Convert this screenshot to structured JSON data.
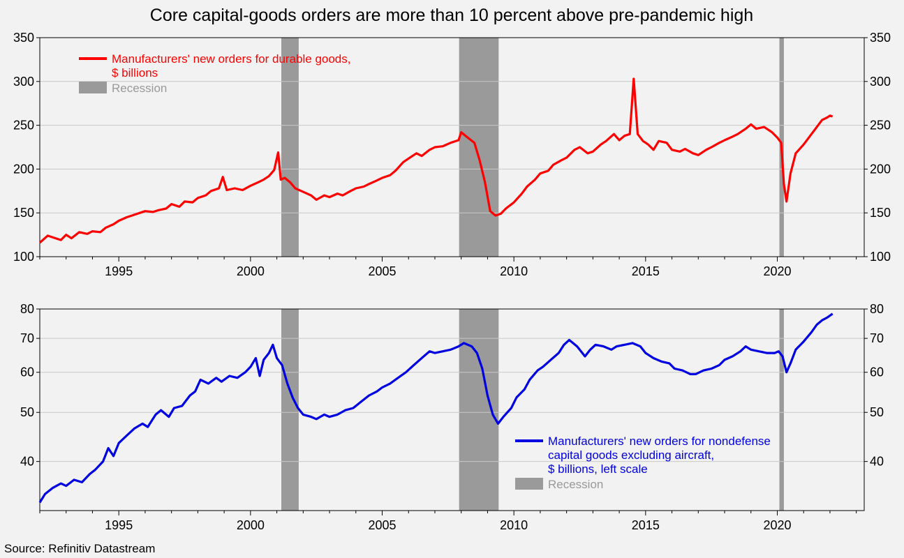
{
  "page": {
    "title": "Core capital-goods orders are more than 10 percent above pre-pandemic high",
    "source": "Source: Refinitiv Datastream"
  },
  "colors": {
    "durable": "#ff0000",
    "core": "#0000e0",
    "recession": "#9a9a9a",
    "recession_label": "#999999",
    "background": "#f2f2f2"
  },
  "chart_data": [
    {
      "type": "line",
      "scale": "linear",
      "xlim": [
        1992.0,
        2023.3
      ],
      "ylim": [
        100,
        350
      ],
      "yticks": [
        100,
        150,
        200,
        250,
        300,
        350
      ],
      "xticks": [
        1995,
        2000,
        2005,
        2010,
        2015,
        2020
      ],
      "grid": true,
      "legend_position": "top-left",
      "legend": {
        "series_label": "Manufacturers' new orders for durable goods,",
        "series_label_line2": "$ billions",
        "recession_label": "Recession"
      },
      "recessions": [
        [
          2001.17,
          2001.83
        ],
        [
          2007.92,
          2009.42
        ],
        [
          2020.08,
          2020.25
        ]
      ],
      "series": [
        {
          "name": "Manufacturers' new orders for durable goods, $ billions",
          "color": "#ff0000",
          "points": [
            [
              1992.0,
              116
            ],
            [
              1992.3,
              124
            ],
            [
              1992.6,
              121
            ],
            [
              1992.8,
              119
            ],
            [
              1993.0,
              125
            ],
            [
              1993.2,
              121
            ],
            [
              1993.5,
              128
            ],
            [
              1993.8,
              126
            ],
            [
              1994.0,
              129
            ],
            [
              1994.3,
              128
            ],
            [
              1994.5,
              133
            ],
            [
              1994.8,
              137
            ],
            [
              1995.0,
              141
            ],
            [
              1995.3,
              145
            ],
            [
              1995.5,
              147
            ],
            [
              1995.8,
              150
            ],
            [
              1996.0,
              152
            ],
            [
              1996.3,
              151
            ],
            [
              1996.5,
              153
            ],
            [
              1996.8,
              155
            ],
            [
              1997.0,
              160
            ],
            [
              1997.3,
              157
            ],
            [
              1997.5,
              163
            ],
            [
              1997.8,
              162
            ],
            [
              1998.0,
              167
            ],
            [
              1998.3,
              170
            ],
            [
              1998.5,
              175
            ],
            [
              1998.8,
              178
            ],
            [
              1998.95,
              191
            ],
            [
              1999.1,
              176
            ],
            [
              1999.4,
              178
            ],
            [
              1999.7,
              176
            ],
            [
              2000.0,
              181
            ],
            [
              2000.3,
              185
            ],
            [
              2000.5,
              188
            ],
            [
              2000.7,
              192
            ],
            [
              2000.9,
              199
            ],
            [
              2001.05,
              219
            ],
            [
              2001.15,
              188
            ],
            [
              2001.3,
              190
            ],
            [
              2001.5,
              185
            ],
            [
              2001.7,
              178
            ],
            [
              2002.0,
              174
            ],
            [
              2002.3,
              170
            ],
            [
              2002.5,
              165
            ],
            [
              2002.8,
              170
            ],
            [
              2003.0,
              168
            ],
            [
              2003.3,
              172
            ],
            [
              2003.5,
              170
            ],
            [
              2003.8,
              175
            ],
            [
              2004.0,
              178
            ],
            [
              2004.3,
              180
            ],
            [
              2004.5,
              183
            ],
            [
              2004.8,
              187
            ],
            [
              2005.0,
              190
            ],
            [
              2005.3,
              193
            ],
            [
              2005.5,
              198
            ],
            [
              2005.8,
              208
            ],
            [
              2006.0,
              212
            ],
            [
              2006.3,
              218
            ],
            [
              2006.5,
              215
            ],
            [
              2006.8,
              222
            ],
            [
              2007.0,
              225
            ],
            [
              2007.3,
              226
            ],
            [
              2007.6,
              230
            ],
            [
              2007.9,
              233
            ],
            [
              2008.0,
              242
            ],
            [
              2008.2,
              237
            ],
            [
              2008.5,
              230
            ],
            [
              2008.7,
              210
            ],
            [
              2008.9,
              185
            ],
            [
              2009.1,
              152
            ],
            [
              2009.3,
              147
            ],
            [
              2009.5,
              149
            ],
            [
              2009.7,
              155
            ],
            [
              2010.0,
              162
            ],
            [
              2010.3,
              172
            ],
            [
              2010.5,
              180
            ],
            [
              2010.8,
              188
            ],
            [
              2011.0,
              195
            ],
            [
              2011.3,
              198
            ],
            [
              2011.5,
              205
            ],
            [
              2011.8,
              210
            ],
            [
              2012.0,
              213
            ],
            [
              2012.3,
              222
            ],
            [
              2012.5,
              225
            ],
            [
              2012.8,
              218
            ],
            [
              2013.0,
              220
            ],
            [
              2013.3,
              228
            ],
            [
              2013.5,
              232
            ],
            [
              2013.8,
              240
            ],
            [
              2014.0,
              233
            ],
            [
              2014.2,
              238
            ],
            [
              2014.4,
              240
            ],
            [
              2014.55,
              303
            ],
            [
              2014.7,
              240
            ],
            [
              2014.9,
              232
            ],
            [
              2015.1,
              228
            ],
            [
              2015.3,
              222
            ],
            [
              2015.5,
              232
            ],
            [
              2015.8,
              230
            ],
            [
              2016.0,
              222
            ],
            [
              2016.3,
              220
            ],
            [
              2016.5,
              223
            ],
            [
              2016.8,
              218
            ],
            [
              2017.0,
              216
            ],
            [
              2017.3,
              222
            ],
            [
              2017.5,
              225
            ],
            [
              2017.8,
              230
            ],
            [
              2018.0,
              233
            ],
            [
              2018.3,
              237
            ],
            [
              2018.5,
              240
            ],
            [
              2018.8,
              246
            ],
            [
              2019.0,
              251
            ],
            [
              2019.2,
              246
            ],
            [
              2019.5,
              248
            ],
            [
              2019.8,
              242
            ],
            [
              2020.0,
              236
            ],
            [
              2020.15,
              230
            ],
            [
              2020.25,
              183
            ],
            [
              2020.35,
              163
            ],
            [
              2020.5,
              195
            ],
            [
              2020.7,
              218
            ],
            [
              2021.0,
              228
            ],
            [
              2021.3,
              240
            ],
            [
              2021.5,
              248
            ],
            [
              2021.7,
              256
            ],
            [
              2021.9,
              259
            ],
            [
              2022.0,
              261
            ],
            [
              2022.1,
              260
            ]
          ]
        }
      ]
    },
    {
      "type": "line",
      "scale": "log",
      "xlim": [
        1992.0,
        2023.3
      ],
      "ylim": [
        32,
        80
      ],
      "yticks": [
        40,
        50,
        60,
        70,
        80
      ],
      "xticks": [
        1995,
        2000,
        2005,
        2010,
        2015,
        2020
      ],
      "grid": true,
      "legend_position": "bottom-right",
      "legend": {
        "series_label": "Manufacturers' new orders for nondefense",
        "series_label_line2": "capital goods excluding aircraft,",
        "series_label_line3": "$ billions, left scale",
        "recession_label": "Recession"
      },
      "recessions": [
        [
          2001.17,
          2001.83
        ],
        [
          2007.92,
          2009.42
        ],
        [
          2020.08,
          2020.25
        ]
      ],
      "series": [
        {
          "name": "Manufacturers' new orders for nondefense capital goods excluding aircraft, $ billions, left scale",
          "color": "#0000e0",
          "points": [
            [
              1992.0,
              33.2
            ],
            [
              1992.2,
              34.5
            ],
            [
              1992.5,
              35.5
            ],
            [
              1992.8,
              36.2
            ],
            [
              1993.0,
              35.8
            ],
            [
              1993.3,
              36.8
            ],
            [
              1993.6,
              36.4
            ],
            [
              1993.9,
              37.8
            ],
            [
              1994.1,
              38.5
            ],
            [
              1994.4,
              40.0
            ],
            [
              1994.6,
              42.5
            ],
            [
              1994.8,
              41.0
            ],
            [
              1995.0,
              43.5
            ],
            [
              1995.3,
              45.0
            ],
            [
              1995.6,
              46.5
            ],
            [
              1995.9,
              47.5
            ],
            [
              1996.1,
              46.8
            ],
            [
              1996.4,
              49.5
            ],
            [
              1996.6,
              50.5
            ],
            [
              1996.9,
              49.0
            ],
            [
              1997.1,
              51.0
            ],
            [
              1997.4,
              51.5
            ],
            [
              1997.7,
              54.0
            ],
            [
              1997.9,
              55.0
            ],
            [
              1998.1,
              58.0
            ],
            [
              1998.4,
              57.0
            ],
            [
              1998.7,
              58.5
            ],
            [
              1998.9,
              57.5
            ],
            [
              1999.2,
              59.0
            ],
            [
              1999.5,
              58.5
            ],
            [
              1999.8,
              60.0
            ],
            [
              2000.0,
              61.5
            ],
            [
              2000.2,
              64.0
            ],
            [
              2000.35,
              59.0
            ],
            [
              2000.5,
              63.5
            ],
            [
              2000.7,
              65.5
            ],
            [
              2000.85,
              68.0
            ],
            [
              2001.0,
              64.0
            ],
            [
              2001.2,
              62.0
            ],
            [
              2001.4,
              57.0
            ],
            [
              2001.6,
              53.5
            ],
            [
              2001.8,
              51.0
            ],
            [
              2002.0,
              49.5
            ],
            [
              2002.3,
              49.0
            ],
            [
              2002.5,
              48.5
            ],
            [
              2002.8,
              49.5
            ],
            [
              2003.0,
              49.0
            ],
            [
              2003.3,
              49.5
            ],
            [
              2003.6,
              50.5
            ],
            [
              2003.9,
              51.0
            ],
            [
              2004.2,
              52.5
            ],
            [
              2004.5,
              54.0
            ],
            [
              2004.8,
              55.0
            ],
            [
              2005.0,
              56.0
            ],
            [
              2005.3,
              57.0
            ],
            [
              2005.6,
              58.5
            ],
            [
              2005.9,
              60.0
            ],
            [
              2006.2,
              62.0
            ],
            [
              2006.5,
              64.0
            ],
            [
              2006.8,
              66.0
            ],
            [
              2007.0,
              65.5
            ],
            [
              2007.3,
              66.0
            ],
            [
              2007.6,
              66.5
            ],
            [
              2007.9,
              67.5
            ],
            [
              2008.1,
              68.5
            ],
            [
              2008.4,
              67.5
            ],
            [
              2008.6,
              65.5
            ],
            [
              2008.8,
              61.0
            ],
            [
              2009.0,
              54.0
            ],
            [
              2009.2,
              49.5
            ],
            [
              2009.4,
              47.5
            ],
            [
              2009.6,
              49.0
            ],
            [
              2009.9,
              51.0
            ],
            [
              2010.1,
              53.5
            ],
            [
              2010.4,
              55.5
            ],
            [
              2010.6,
              58.0
            ],
            [
              2010.9,
              60.5
            ],
            [
              2011.1,
              61.5
            ],
            [
              2011.4,
              63.5
            ],
            [
              2011.7,
              65.5
            ],
            [
              2011.9,
              68.0
            ],
            [
              2012.1,
              69.5
            ],
            [
              2012.4,
              67.5
            ],
            [
              2012.7,
              64.5
            ],
            [
              2012.9,
              66.5
            ],
            [
              2013.1,
              68.0
            ],
            [
              2013.4,
              67.5
            ],
            [
              2013.7,
              66.5
            ],
            [
              2013.9,
              67.5
            ],
            [
              2014.2,
              68.0
            ],
            [
              2014.5,
              68.5
            ],
            [
              2014.8,
              67.5
            ],
            [
              2015.0,
              65.5
            ],
            [
              2015.3,
              64.0
            ],
            [
              2015.6,
              63.0
            ],
            [
              2015.9,
              62.5
            ],
            [
              2016.1,
              61.0
            ],
            [
              2016.4,
              60.5
            ],
            [
              2016.7,
              59.5
            ],
            [
              2016.9,
              59.5
            ],
            [
              2017.2,
              60.5
            ],
            [
              2017.5,
              61.0
            ],
            [
              2017.8,
              62.0
            ],
            [
              2018.0,
              63.5
            ],
            [
              2018.3,
              64.5
            ],
            [
              2018.6,
              66.0
            ],
            [
              2018.8,
              67.5
            ],
            [
              2019.0,
              66.5
            ],
            [
              2019.3,
              66.0
            ],
            [
              2019.6,
              65.5
            ],
            [
              2019.9,
              65.5
            ],
            [
              2020.05,
              66.0
            ],
            [
              2020.2,
              64.5
            ],
            [
              2020.35,
              60.0
            ],
            [
              2020.5,
              62.5
            ],
            [
              2020.7,
              66.5
            ],
            [
              2021.0,
              69.0
            ],
            [
              2021.3,
              72.0
            ],
            [
              2021.5,
              74.5
            ],
            [
              2021.7,
              76.0
            ],
            [
              2021.9,
              77.0
            ],
            [
              2022.1,
              78.3
            ]
          ]
        }
      ]
    }
  ]
}
